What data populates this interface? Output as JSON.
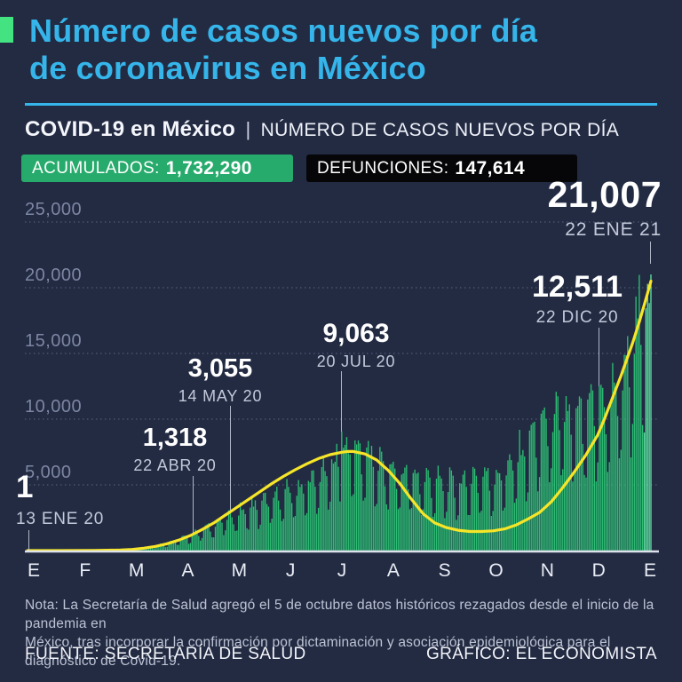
{
  "header": {
    "title_line1": "Número de casos nuevos por día",
    "title_line2": "de coronavirus en México",
    "brand": "COVID-19 en México",
    "separator": "|",
    "descriptor": "NÚMERO DE CASOS NUEVOS POR DÍA"
  },
  "badges": {
    "accumulated": {
      "label": "ACUMULADOS:",
      "value": "1,732,290"
    },
    "deaths": {
      "label": "DEFUNCIONES:",
      "value": "147,614"
    }
  },
  "colors": {
    "background": "#232b43",
    "accent_cyan": "#35b5ea",
    "accent_green": "#43e382",
    "bar_green": "#2cbd72",
    "bar_recent_mint": "#5ce2a0",
    "trend_yellow": "#f7e528",
    "badge_green_bg": "#27ab6c",
    "badge_black_bg": "#060608",
    "gridline": "#8a93ad",
    "y_label": "#7d87a2",
    "month_label": "#eaedf5",
    "baseline": "#dde1ec"
  },
  "chart_data": {
    "type": "bar",
    "title": "Número de casos nuevos por día de coronavirus en México",
    "xlabel": "",
    "ylabel": "",
    "ylim": [
      0,
      25000
    ],
    "grid": "dotted-horizontal",
    "legend_position": "none",
    "y_axis": {
      "ticks": [
        {
          "value": 25000,
          "label": "25,000"
        },
        {
          "value": 20000,
          "label": "20,000"
        },
        {
          "value": 15000,
          "label": "15,000"
        },
        {
          "value": 10000,
          "label": "10,000"
        },
        {
          "value": 5000,
          "label": "5,000"
        }
      ]
    },
    "x_axis": {
      "labels": [
        "E",
        "F",
        "M",
        "A",
        "M",
        "J",
        "J",
        "A",
        "S",
        "O",
        "N",
        "D",
        "E"
      ],
      "start_date_label": "13 ENE 20",
      "end_date_label": "22 ENE 21",
      "days_total": 376
    },
    "key_points": [
      {
        "label": "1",
        "date": "13 ENE 20",
        "day": 0,
        "value": 1
      },
      {
        "label": "1,318",
        "date": "22 ABR 20",
        "day": 100,
        "value": 1318
      },
      {
        "label": "3,055",
        "date": "14 MAY 20",
        "day": 122,
        "value": 3055
      },
      {
        "label": "9,063",
        "date": "20 JUL 20",
        "day": 189,
        "value": 9063
      },
      {
        "label": "12,511",
        "date": "22 DIC 20",
        "day": 344,
        "value": 12511
      },
      {
        "label": "21,007",
        "date": "22 ENE 21",
        "day": 375,
        "value": 21007
      }
    ],
    "bars_weekly_envelope": [
      [
        0,
        1
      ],
      [
        14,
        2
      ],
      [
        28,
        3
      ],
      [
        42,
        8
      ],
      [
        49,
        20
      ],
      [
        56,
        60
      ],
      [
        63,
        140
      ],
      [
        70,
        260
      ],
      [
        77,
        420
      ],
      [
        84,
        650
      ],
      [
        91,
        950
      ],
      [
        98,
        1300
      ],
      [
        105,
        1750
      ],
      [
        112,
        2250
      ],
      [
        119,
        2750
      ],
      [
        126,
        3200
      ],
      [
        133,
        3600
      ],
      [
        140,
        4000
      ],
      [
        147,
        4400
      ],
      [
        154,
        4800
      ],
      [
        161,
        5200
      ],
      [
        168,
        5700
      ],
      [
        175,
        6300
      ],
      [
        182,
        7100
      ],
      [
        189,
        8600
      ],
      [
        196,
        9000
      ],
      [
        203,
        8300
      ],
      [
        210,
        7500
      ],
      [
        217,
        6900
      ],
      [
        224,
        6600
      ],
      [
        231,
        6400
      ],
      [
        238,
        6100
      ],
      [
        245,
        5900
      ],
      [
        252,
        5700
      ],
      [
        259,
        5600
      ],
      [
        266,
        6100
      ],
      [
        273,
        6400
      ],
      [
        280,
        6200
      ],
      [
        287,
        6800
      ],
      [
        294,
        7800
      ],
      [
        301,
        9300
      ],
      [
        308,
        10600
      ],
      [
        315,
        11300
      ],
      [
        322,
        11600
      ],
      [
        329,
        11200
      ],
      [
        336,
        11600
      ],
      [
        343,
        12400
      ],
      [
        350,
        12900
      ],
      [
        357,
        14500
      ],
      [
        361,
        16200
      ],
      [
        364,
        18000
      ],
      [
        368,
        20600
      ],
      [
        371,
        18500
      ],
      [
        375,
        21007
      ]
    ],
    "weekday_factors": [
      0.5,
      0.88,
      1.0,
      0.97,
      0.93,
      0.74,
      0.45
    ],
    "recent_highlight_from_day": 371,
    "trend_line": [
      [
        0,
        1
      ],
      [
        20,
        3
      ],
      [
        40,
        10
      ],
      [
        56,
        40
      ],
      [
        63,
        90
      ],
      [
        70,
        180
      ],
      [
        77,
        320
      ],
      [
        84,
        520
      ],
      [
        91,
        800
      ],
      [
        98,
        1150
      ],
      [
        105,
        1600
      ],
      [
        112,
        2100
      ],
      [
        119,
        2700
      ],
      [
        126,
        3300
      ],
      [
        133,
        3900
      ],
      [
        140,
        4500
      ],
      [
        147,
        5100
      ],
      [
        154,
        5650
      ],
      [
        161,
        6150
      ],
      [
        168,
        6600
      ],
      [
        175,
        7000
      ],
      [
        182,
        7300
      ],
      [
        189,
        7480
      ],
      [
        193,
        7550
      ],
      [
        196,
        7540
      ],
      [
        203,
        7350
      ],
      [
        210,
        6900
      ],
      [
        217,
        6100
      ],
      [
        224,
        5100
      ],
      [
        231,
        3900
      ],
      [
        238,
        2800
      ],
      [
        245,
        2100
      ],
      [
        252,
        1750
      ],
      [
        259,
        1550
      ],
      [
        266,
        1450
      ],
      [
        273,
        1450
      ],
      [
        280,
        1500
      ],
      [
        287,
        1650
      ],
      [
        294,
        1950
      ],
      [
        301,
        2400
      ],
      [
        308,
        2900
      ],
      [
        315,
        3700
      ],
      [
        322,
        4800
      ],
      [
        329,
        6000
      ],
      [
        336,
        7300
      ],
      [
        343,
        8800
      ],
      [
        347,
        10000
      ],
      [
        350,
        11000
      ],
      [
        357,
        13300
      ],
      [
        364,
        15800
      ],
      [
        368,
        17400
      ],
      [
        371,
        18700
      ],
      [
        373,
        19600
      ],
      [
        375,
        20500
      ]
    ]
  },
  "note": {
    "line1": "Nota: La Secretaría de Salud agregó el 5 de octubre datos históricos rezagados desde el inicio de la pandemia en",
    "line2": "México, tras incorporar la confirmación por dictaminación y asociación epidemiológica para el diagnóstico de Covid-19."
  },
  "footer": {
    "source": "FUENTE: SECRETARÍA DE SALUD",
    "credit": "GRÁFICO: EL ECONOMISTA"
  }
}
